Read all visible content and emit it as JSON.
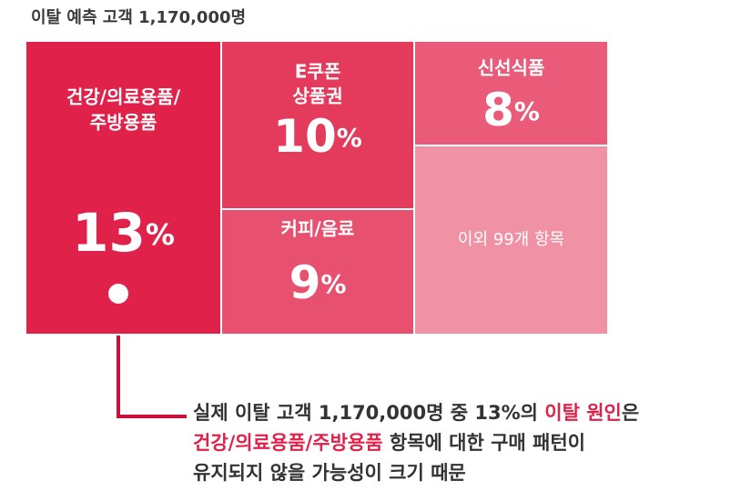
{
  "chart_data": {
    "type": "treemap",
    "title": "이탈 예측 고객 1,170,000명",
    "categories": [
      [
        "건강/의료용품/",
        "주방용품"
      ],
      [
        "E쿠폰",
        "상품권"
      ],
      [
        "커피/음료"
      ],
      [
        "신선식품"
      ],
      [
        "이외 99개 항목"
      ]
    ],
    "values": [
      13,
      10,
      9,
      8,
      null
    ],
    "value_labels": [
      "13%",
      "10%",
      "9%",
      "8%",
      null
    ],
    "colors": [
      "#e0224b",
      "#e43a5c",
      "#e8506f",
      "#ea5b7a",
      "#f191a5"
    ],
    "annotation": [
      [
        {
          "text": "실제 이탈 고객 1,170,000명 중 13%의 ",
          "emphasis": false
        },
        {
          "text": "이탈 원인",
          "emphasis": true
        },
        {
          "text": "은",
          "emphasis": false
        }
      ],
      [
        {
          "text": "건강/의료용품/주방용품",
          "emphasis": true
        },
        {
          "text": " 항목에 대한 구매 패턴이",
          "emphasis": false
        }
      ],
      [
        {
          "text": "유지되지 않을 가능성이 크기 때문",
          "emphasis": false
        }
      ]
    ]
  }
}
